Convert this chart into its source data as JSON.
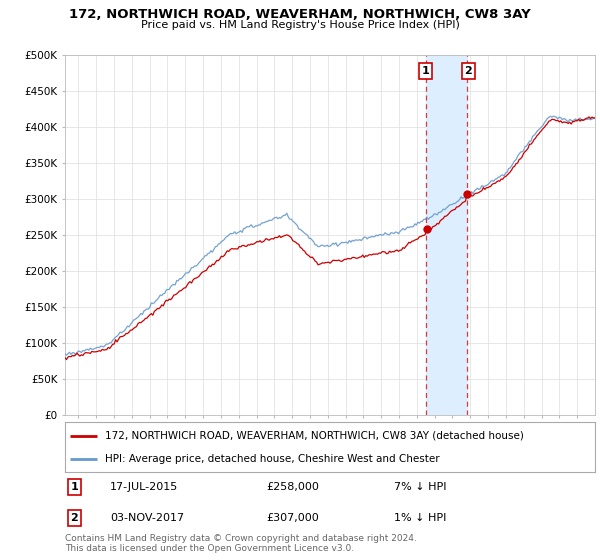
{
  "title": "172, NORTHWICH ROAD, WEAVERHAM, NORTHWICH, CW8 3AY",
  "subtitle": "Price paid vs. HM Land Registry's House Price Index (HPI)",
  "ylim": [
    0,
    500000
  ],
  "xlim_start": 1995.25,
  "xlim_end": 2025.0,
  "property_color": "#cc0000",
  "hpi_color": "#6699cc",
  "shade_color": "#ddeeff",
  "marker1_date": 2015.54,
  "marker1_price": 258000,
  "marker2_date": 2017.84,
  "marker2_price": 307000,
  "legend_property": "172, NORTHWICH ROAD, WEAVERHAM, NORTHWICH, CW8 3AY (detached house)",
  "legend_hpi": "HPI: Average price, detached house, Cheshire West and Chester",
  "note1_date": "17-JUL-2015",
  "note1_price": "£258,000",
  "note1_pct": "7% ↓ HPI",
  "note2_date": "03-NOV-2017",
  "note2_price": "£307,000",
  "note2_pct": "1% ↓ HPI",
  "footer": "Contains HM Land Registry data © Crown copyright and database right 2024.\nThis data is licensed under the Open Government Licence v3.0.",
  "background_color": "#ffffff",
  "grid_color": "#dddddd"
}
